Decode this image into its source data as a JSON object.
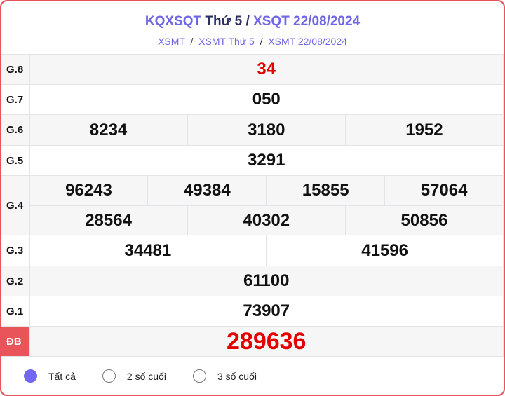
{
  "header": {
    "title_a": "KQXSQT",
    "title_b": "Thứ 5",
    "sep": "/",
    "title_c": "XSQT 22/08/2024",
    "crumbs": [
      "XSMT",
      "XSMT Thứ 5",
      "XSMT 22/08/2024"
    ],
    "crumb_sep": "/"
  },
  "prizes": {
    "g8": {
      "label": "G.8",
      "values": [
        "34"
      ]
    },
    "g7": {
      "label": "G.7",
      "values": [
        "050"
      ]
    },
    "g6": {
      "label": "G.6",
      "values": [
        "8234",
        "3180",
        "1952"
      ]
    },
    "g5": {
      "label": "G.5",
      "values": [
        "3291"
      ]
    },
    "g4": {
      "label": "G.4",
      "values": [
        "96243",
        "49384",
        "15855",
        "57064",
        "28564",
        "40302",
        "50856"
      ]
    },
    "g3": {
      "label": "G.3",
      "values": [
        "34481",
        "41596"
      ]
    },
    "g2": {
      "label": "G.2",
      "values": [
        "61100"
      ]
    },
    "g1": {
      "label": "G.1",
      "values": [
        "73907"
      ]
    },
    "db": {
      "label": "ĐB",
      "values": [
        "289636"
      ]
    }
  },
  "filters": [
    {
      "label": "Tất cả",
      "selected": true
    },
    {
      "label": "2 số cuối",
      "selected": false
    },
    {
      "label": "3 số cuối",
      "selected": false
    }
  ],
  "colors": {
    "accent": "#6f66e6",
    "highlight": "#e50000",
    "special": "#e8545a"
  }
}
